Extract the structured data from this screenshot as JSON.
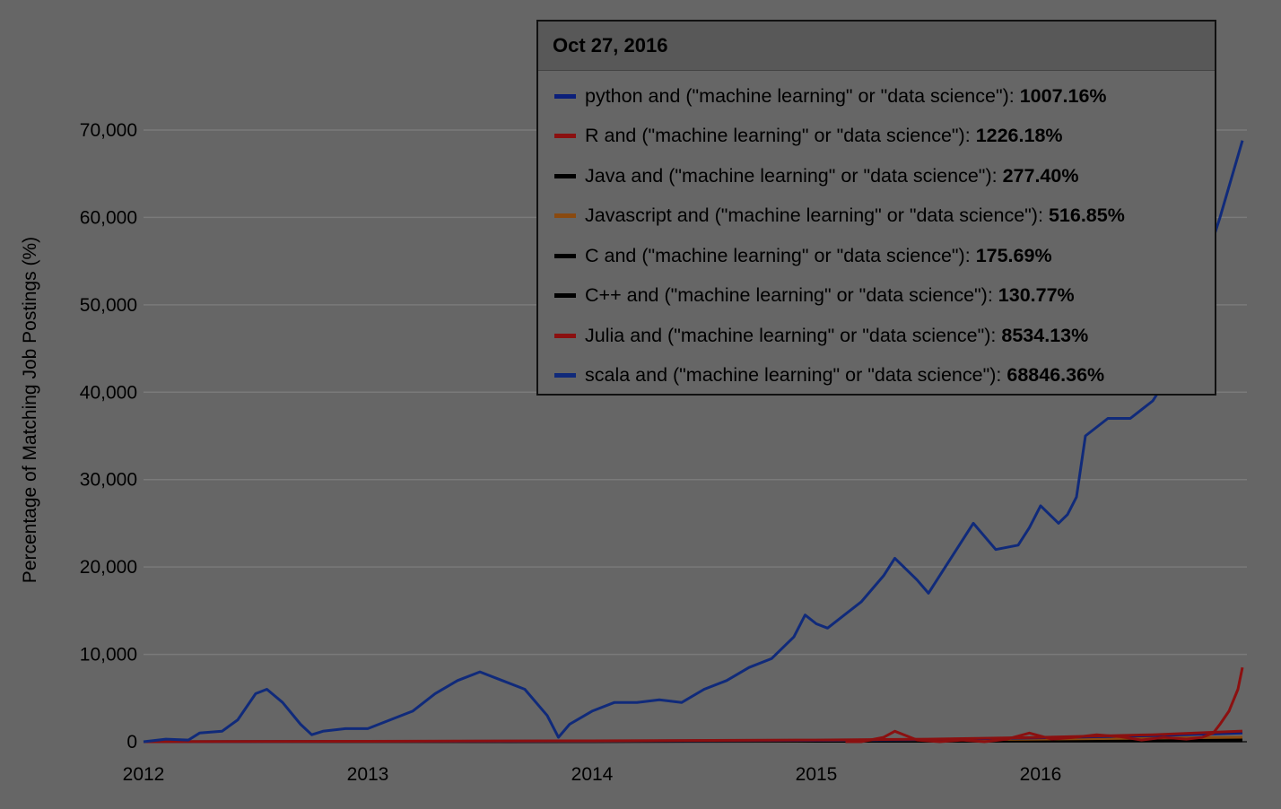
{
  "tooltip": {
    "date": "Oct 27, 2016",
    "rows": [
      {
        "label": "python and (\"machine learning\" or \"data science\"):",
        "value": "1007.16%",
        "color": "#0b1f7a"
      },
      {
        "label": "R and (\"machine learning\" or \"data science\"):",
        "value": "1226.18%",
        "color": "#8b1010"
      },
      {
        "label": "Java and (\"machine learning\" or \"data science\"):",
        "value": "277.40%",
        "color": "#000000"
      },
      {
        "label": "Javascript and (\"machine learning\" or \"data science\"):",
        "value": "516.85%",
        "color": "#8a4a10"
      },
      {
        "label": "C and (\"machine learning\" or \"data science\"):",
        "value": "175.69%",
        "color": "#000000"
      },
      {
        "label": "C++ and (\"machine learning\" or \"data science\"):",
        "value": "130.77%",
        "color": "#000000"
      },
      {
        "label": "Julia and (\"machine learning\" or \"data science\"):",
        "value": "8534.13%",
        "color": "#8b1010"
      },
      {
        "label": "scala and (\"machine learning\" or \"data science\"):",
        "value": "68846.36%",
        "color": "#102a7a"
      }
    ]
  },
  "chart_data": {
    "type": "line",
    "title": "",
    "xlabel": "",
    "ylabel": "Percentage of Matching Job Postings (%)",
    "xlim": [
      2012.0,
      2016.92
    ],
    "ylim": [
      0,
      70000
    ],
    "xticks": [
      2012,
      2013,
      2014,
      2015,
      2016
    ],
    "xtick_labels": [
      "2012",
      "2013",
      "2014",
      "2015",
      "2016"
    ],
    "yticks": [
      0,
      10000,
      20000,
      30000,
      40000,
      50000,
      60000,
      70000
    ],
    "ytick_labels": [
      "0",
      "10,000",
      "20,000",
      "30,000",
      "40,000",
      "50,000",
      "60,000",
      "70,000"
    ],
    "grid": true,
    "series": [
      {
        "name": "scala and (\"machine learning\" or \"data science\")",
        "color": "#102a7a",
        "x": [
          2012.0,
          2012.1,
          2012.2,
          2012.25,
          2012.35,
          2012.42,
          2012.5,
          2012.55,
          2012.62,
          2012.7,
          2012.75,
          2012.8,
          2012.9,
          2013.0,
          2013.1,
          2013.2,
          2013.3,
          2013.4,
          2013.5,
          2013.6,
          2013.7,
          2013.8,
          2013.85,
          2013.9,
          2014.0,
          2014.1,
          2014.2,
          2014.3,
          2014.4,
          2014.5,
          2014.6,
          2014.7,
          2014.8,
          2014.9,
          2014.95,
          2015.0,
          2015.05,
          2015.1,
          2015.2,
          2015.3,
          2015.35,
          2015.45,
          2015.5,
          2015.6,
          2015.65,
          2015.7,
          2015.8,
          2015.9,
          2015.95,
          2016.0,
          2016.08,
          2016.12,
          2016.16,
          2016.2,
          2016.3,
          2016.4,
          2016.5,
          2016.6,
          2016.65,
          2016.7,
          2016.8,
          2016.9
        ],
        "y": [
          0,
          300,
          200,
          1000,
          1200,
          2500,
          5500,
          6000,
          4500,
          2000,
          800,
          1200,
          1500,
          1500,
          2500,
          3500,
          5500,
          7000,
          8000,
          7000,
          6000,
          3000,
          500,
          2000,
          3500,
          4500,
          4500,
          4800,
          4500,
          6000,
          7000,
          8500,
          9500,
          12000,
          14500,
          13500,
          13000,
          14000,
          16000,
          19000,
          21000,
          18500,
          17000,
          21000,
          23000,
          25000,
          22000,
          22500,
          24500,
          27000,
          25000,
          26000,
          28000,
          35000,
          37000,
          37000,
          39000,
          43000,
          46000,
          52000,
          60000,
          68800
        ]
      },
      {
        "name": "Julia and (\"machine learning\" or \"data science\")",
        "color": "#8b1010",
        "x": [
          2015.13,
          2015.2,
          2015.3,
          2015.35,
          2015.45,
          2015.55,
          2015.65,
          2015.75,
          2015.85,
          2015.95,
          2016.05,
          2016.15,
          2016.25,
          2016.35,
          2016.45,
          2016.55,
          2016.65,
          2016.72,
          2016.77,
          2016.8,
          2016.84,
          2016.88,
          2016.9
        ],
        "y": [
          0,
          0,
          500,
          1200,
          200,
          0,
          200,
          0,
          300,
          1000,
          300,
          500,
          800,
          600,
          200,
          500,
          300,
          500,
          1000,
          2000,
          3500,
          6000,
          8500
        ]
      },
      {
        "name": "R and (\"machine learning\" or \"data science\")",
        "color": "#8b1010",
        "x": [
          2012.0,
          2013.0,
          2014.0,
          2015.0,
          2015.5,
          2016.0,
          2016.5,
          2016.9
        ],
        "y": [
          0,
          50,
          100,
          200,
          300,
          500,
          800,
          1226
        ]
      },
      {
        "name": "python and (\"machine learning\" or \"data science\")",
        "color": "#0b1f7a",
        "x": [
          2012.0,
          2013.0,
          2014.0,
          2015.0,
          2015.5,
          2016.0,
          2016.5,
          2016.9
        ],
        "y": [
          0,
          40,
          80,
          150,
          250,
          450,
          700,
          1007
        ]
      },
      {
        "name": "Javascript and (\"machine learning\" or \"data science\")",
        "color": "#8a4a10",
        "x": [
          2012.0,
          2013.0,
          2014.0,
          2015.0,
          2016.0,
          2016.9
        ],
        "y": [
          0,
          30,
          60,
          150,
          300,
          517
        ]
      },
      {
        "name": "Java and (\"machine learning\" or \"data science\")",
        "color": "#000000",
        "x": [
          2012.0,
          2013.0,
          2014.0,
          2015.0,
          2016.0,
          2016.9
        ],
        "y": [
          0,
          20,
          40,
          100,
          180,
          277
        ]
      },
      {
        "name": "C and (\"machine learning\" or \"data science\")",
        "color": "#000000",
        "x": [
          2012.0,
          2014.0,
          2016.0,
          2016.9
        ],
        "y": [
          0,
          30,
          100,
          176
        ]
      },
      {
        "name": "C++ and (\"machine learning\" or \"data science\")",
        "color": "#000000",
        "x": [
          2012.0,
          2014.0,
          2016.0,
          2016.9
        ],
        "y": [
          0,
          20,
          80,
          131
        ]
      }
    ]
  }
}
